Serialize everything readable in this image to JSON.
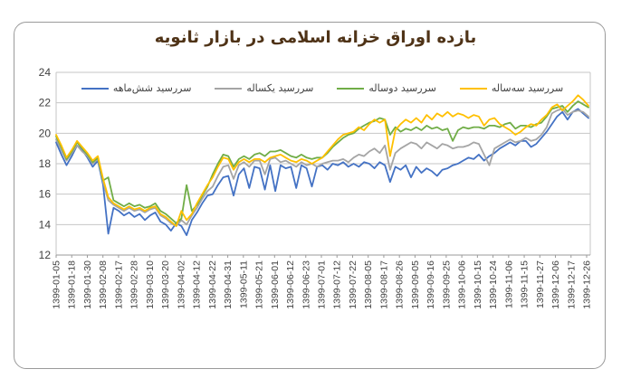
{
  "chart_data": {
    "type": "line",
    "title": "بازده اوراق خزانه اسلامی در بازار ثانویه",
    "title_color": "#4f3317",
    "xlabel": "",
    "ylabel": "",
    "ylim": [
      12,
      24
    ],
    "yticks": [
      12,
      14,
      16,
      18,
      20,
      22,
      24
    ],
    "grid": true,
    "legend_position": "top-center-inside",
    "axis_label_color": "#404040",
    "gridline_color": "#c6c6c6",
    "points_per_tick_interval": 3,
    "x_tick_labels": [
      "1399-01-05",
      "1399-01-18",
      "1399-01-30",
      "1399-02-08",
      "1399-02-17",
      "1399-02-28",
      "1399-03-10",
      "1399-03-20",
      "1399-04-02",
      "1399-04-12",
      "1399-04-22",
      "1399-04-31",
      "1399-05-11",
      "1399-05-21",
      "1399-06-01",
      "1399-06-12",
      "1399-06-23",
      "1399-07-01",
      "1399-07-12",
      "1399-07-22",
      "1399-08-05",
      "1399-08-17",
      "1399-08-26",
      "1399-09-05",
      "1399-09-16",
      "1399-09-25",
      "1399-10-06",
      "1399-10-15",
      "1399-10-24",
      "1399-11-06",
      "1399-11-15",
      "1399-11-27",
      "1399-12-06",
      "1399-12-17",
      "1399-12-26"
    ],
    "series": [
      {
        "name": "سررسید شش‌ماهه",
        "color": "#4472C4",
        "values": [
          19.4,
          18.6,
          17.9,
          18.5,
          19.2,
          18.9,
          18.4,
          17.8,
          18.2,
          16.6,
          13.4,
          15.1,
          14.9,
          14.6,
          14.8,
          14.5,
          14.7,
          14.3,
          14.6,
          14.8,
          14.2,
          14.0,
          13.6,
          14.1,
          13.9,
          13.3,
          14.3,
          14.8,
          15.4,
          15.9,
          16.0,
          16.6,
          17.1,
          17.2,
          15.9,
          17.3,
          17.7,
          16.4,
          17.8,
          17.7,
          16.3,
          17.9,
          16.2,
          17.9,
          17.7,
          17.8,
          16.4,
          17.9,
          17.7,
          16.5,
          17.8,
          17.9,
          17.6,
          18.0,
          17.9,
          18.1,
          17.8,
          18.0,
          17.8,
          18.1,
          18.0,
          17.7,
          18.1,
          17.9,
          16.8,
          17.8,
          17.6,
          17.9,
          17.1,
          17.8,
          17.4,
          17.7,
          17.5,
          17.2,
          17.6,
          17.7,
          17.9,
          18.0,
          18.2,
          18.4,
          18.3,
          18.6,
          18.2,
          18.5,
          18.7,
          19.0,
          19.2,
          19.4,
          19.2,
          19.5,
          19.5,
          19.1,
          19.3,
          19.7,
          20.1,
          20.6,
          21.1,
          21.4,
          20.9,
          21.4,
          21.6,
          21.3,
          21.0
        ]
      },
      {
        "name": "سررسید یکساله",
        "color": "#A5A5A5",
        "values": [
          19.6,
          18.9,
          18.2,
          18.7,
          19.2,
          18.8,
          18.5,
          18.0,
          18.3,
          16.8,
          15.6,
          15.3,
          15.1,
          14.9,
          15.1,
          14.9,
          15.0,
          14.8,
          15.0,
          15.1,
          14.6,
          14.4,
          14.1,
          13.9,
          14.3,
          14.0,
          14.6,
          15.1,
          15.7,
          16.2,
          16.5,
          17.2,
          17.8,
          17.9,
          17.0,
          17.9,
          18.1,
          17.8,
          18.2,
          18.2,
          17.3,
          18.3,
          18.4,
          18.1,
          18.2,
          18.0,
          17.8,
          18.1,
          17.9,
          18.0,
          17.8,
          18.0,
          18.1,
          18.2,
          18.2,
          18.3,
          18.1,
          18.4,
          18.6,
          18.5,
          18.8,
          19.0,
          18.7,
          19.2,
          17.6,
          18.7,
          19.0,
          19.2,
          19.4,
          19.3,
          19.0,
          19.4,
          19.2,
          19.0,
          19.3,
          19.2,
          19.0,
          19.1,
          19.1,
          19.2,
          19.4,
          19.3,
          18.6,
          17.9,
          19.0,
          19.2,
          19.4,
          19.6,
          19.4,
          19.5,
          19.7,
          19.5,
          19.6,
          19.9,
          20.4,
          21.3,
          21.5,
          21.6,
          21.2,
          21.4,
          21.5,
          21.4,
          21.1
        ]
      },
      {
        "name": "سررسید دوساله",
        "color": "#70AD47",
        "values": [
          19.8,
          19.1,
          18.3,
          18.8,
          19.4,
          19.0,
          18.6,
          18.1,
          18.4,
          16.9,
          17.1,
          15.6,
          15.4,
          15.2,
          15.4,
          15.2,
          15.3,
          15.1,
          15.2,
          15.4,
          14.9,
          14.7,
          14.4,
          14.1,
          14.4,
          16.6,
          14.9,
          15.3,
          15.9,
          16.5,
          17.3,
          18.0,
          18.6,
          18.5,
          17.8,
          18.3,
          18.5,
          18.3,
          18.6,
          18.7,
          18.5,
          18.8,
          18.8,
          18.9,
          18.7,
          18.5,
          18.4,
          18.6,
          18.4,
          18.3,
          18.4,
          18.4,
          18.7,
          19.1,
          19.4,
          19.7,
          19.9,
          20.0,
          20.3,
          20.5,
          20.7,
          20.8,
          21.0,
          20.9,
          19.9,
          20.4,
          20.1,
          20.3,
          20.2,
          20.4,
          20.2,
          20.5,
          20.3,
          20.4,
          20.2,
          20.3,
          19.5,
          20.2,
          20.4,
          20.3,
          20.4,
          20.4,
          20.3,
          20.5,
          20.5,
          20.4,
          20.6,
          20.7,
          20.3,
          20.5,
          20.5,
          20.4,
          20.6,
          20.7,
          21.1,
          21.6,
          21.7,
          21.8,
          21.4,
          21.8,
          22.1,
          21.9,
          21.7
        ]
      },
      {
        "name": "سررسید سه‌ساله",
        "color": "#FFC000",
        "values": [
          19.9,
          19.2,
          18.4,
          18.9,
          19.5,
          19.1,
          18.7,
          18.2,
          18.5,
          17.0,
          15.8,
          15.4,
          15.2,
          15.0,
          15.2,
          15.0,
          15.1,
          14.9,
          15.1,
          15.2,
          14.7,
          14.5,
          14.2,
          13.9,
          14.9,
          14.3,
          14.7,
          15.4,
          16.0,
          16.6,
          17.1,
          17.8,
          18.4,
          18.3,
          17.6,
          18.1,
          18.3,
          18.1,
          18.3,
          18.3,
          18.1,
          18.4,
          18.5,
          18.6,
          18.4,
          18.2,
          18.1,
          18.3,
          18.2,
          18.0,
          18.2,
          18.4,
          18.8,
          19.2,
          19.6,
          19.9,
          20.0,
          20.1,
          20.4,
          20.2,
          20.6,
          20.9,
          20.7,
          20.9,
          18.5,
          20.2,
          20.6,
          20.9,
          20.7,
          21.0,
          20.7,
          21.2,
          20.9,
          21.3,
          21.1,
          21.4,
          21.1,
          21.3,
          21.2,
          21.0,
          21.2,
          21.1,
          20.5,
          20.9,
          21.0,
          20.6,
          20.4,
          20.2,
          19.9,
          20.1,
          20.4,
          20.6,
          20.5,
          20.9,
          21.2,
          21.7,
          21.9,
          21.5,
          21.8,
          22.1,
          22.5,
          22.2,
          21.8
        ]
      }
    ]
  }
}
